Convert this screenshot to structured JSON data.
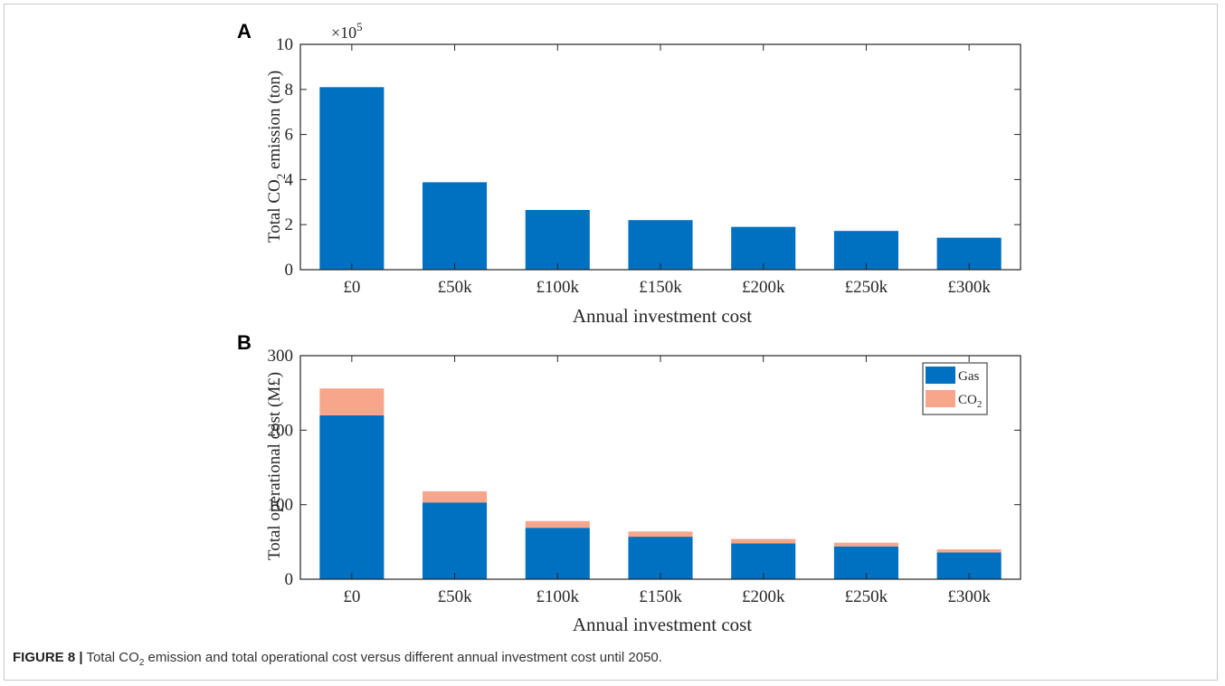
{
  "caption": {
    "label": "FIGURE 8 |",
    "text_before": "Total CO",
    "sub": "2",
    "text_after": " emission and total operational cost versus different annual investment cost until 2050."
  },
  "colors": {
    "gas": "#0070c0",
    "co2": "#f7a58b",
    "axis": "#262626"
  },
  "chart_data": [
    {
      "panel": "A",
      "type": "bar",
      "categories": [
        "£0",
        "£50k",
        "£100k",
        "£150k",
        "£200k",
        "£250k",
        "£300k"
      ],
      "values": [
        8.1,
        3.88,
        2.65,
        2.2,
        1.9,
        1.72,
        1.42
      ],
      "xlabel": "Annual investment cost",
      "ylabel_main": "Total CO",
      "ylabel_sub": "2",
      "ylabel_rest": " emission (ton)",
      "exponent_label": "×10",
      "exponent_power": "5",
      "ylim": [
        0,
        10
      ],
      "yticks": [
        0,
        2,
        4,
        6,
        8,
        10
      ],
      "grid": false
    },
    {
      "panel": "B",
      "type": "bar",
      "stacked": true,
      "categories": [
        "£0",
        "£50k",
        "£100k",
        "£150k",
        "£200k",
        "£250k",
        "£300k"
      ],
      "series": [
        {
          "name": "Gas",
          "values": [
            220,
            103,
            69,
            57,
            48,
            44,
            36
          ]
        },
        {
          "name": "CO2",
          "values": [
            36,
            15,
            9,
            7,
            6,
            5,
            4
          ]
        }
      ],
      "legend_gas": "Gas",
      "legend_co2_main": "CO",
      "legend_co2_sub": "2",
      "legend_position": "top-right",
      "xlabel": "Annual investment cost",
      "ylabel": "Total operational cost (M£)",
      "ylim": [
        0,
        300
      ],
      "yticks": [
        0,
        100,
        200,
        300
      ],
      "grid": false
    }
  ]
}
